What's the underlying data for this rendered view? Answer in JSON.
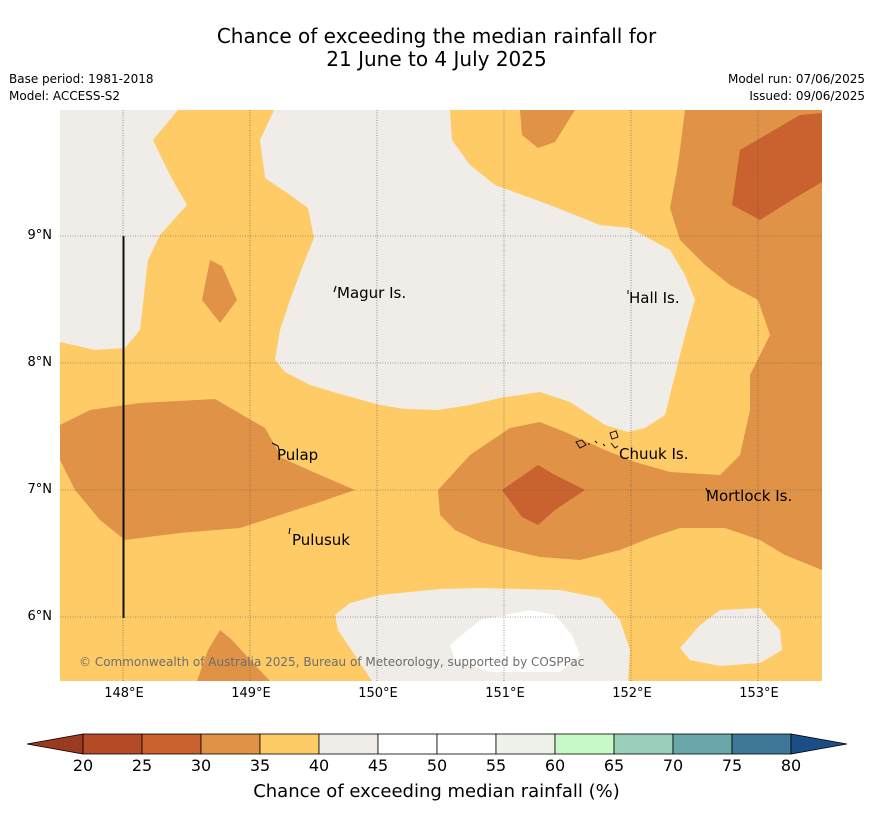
{
  "title_line1": "Chance of exceeding the median rainfall for",
  "title_line2": "21 June to 4 July 2025",
  "base_period": "Base period: 1981-2018",
  "model": "Model: ACCESS-S2",
  "model_run": "Model run: 07/06/2025",
  "issued": "Issued: 09/06/2025",
  "copyright": "© Commonwealth of Australia 2025, Bureau of Meteorology, supported by COSPPac",
  "y_ticks": [
    "9°N",
    "8°N",
    "7°N",
    "6°N"
  ],
  "x_ticks": [
    "148°E",
    "149°E",
    "150°E",
    "151°E",
    "152°E",
    "153°E"
  ],
  "islands": {
    "magur": "Magur Is.",
    "hall": "Hall Is.",
    "pulap": "Pulap",
    "chuuk": "Chuuk Is.",
    "mortlock": "Mortlock Is.",
    "pulusuk": "Pulusuk"
  },
  "colorbar": {
    "label": "Chance of exceeding median rainfall (%)",
    "ticks": [
      "20",
      "25",
      "30",
      "35",
      "40",
      "45",
      "50",
      "55",
      "60",
      "65",
      "70",
      "75",
      "80"
    ],
    "colors": [
      "#b44b26",
      "#c9622f",
      "#e09346",
      "#fecb66",
      "#f0ece7",
      "#ffffff",
      "#ffffff",
      "#eef3ea",
      "#c8f8c6",
      "#99cfb9",
      "#6aa6aa",
      "#3e7898"
    ],
    "under_color": "#9a3a20",
    "over_color": "#1a4e85"
  },
  "map_colors": {
    "c35": "#fecb66",
    "c40": "#f0ece7",
    "c30": "#e09346",
    "c25": "#c9622f",
    "c50": "#ffffff"
  }
}
